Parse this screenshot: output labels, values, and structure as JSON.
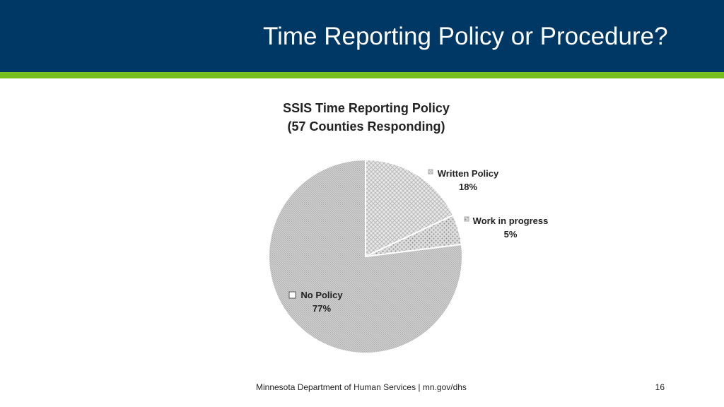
{
  "slide": {
    "title": "Time Reporting Policy or Procedure?",
    "footer": "Minnesota Department of Human Services  |  mn.gov/dhs",
    "page_number": "16",
    "colors": {
      "header": "#003865",
      "accent": "#78be21"
    }
  },
  "chart_data": {
    "type": "pie",
    "title_lines": [
      "SSIS Time Reporting Policy",
      "(57 Counties Responding)"
    ],
    "slices": [
      {
        "label": "Written Policy",
        "value": 18,
        "value_label": "18%"
      },
      {
        "label": "Work in progress",
        "value": 5,
        "value_label": "5%"
      },
      {
        "label": "No Policy",
        "value": 77,
        "value_label": "77%"
      }
    ],
    "legend": "data labels beside slices"
  }
}
